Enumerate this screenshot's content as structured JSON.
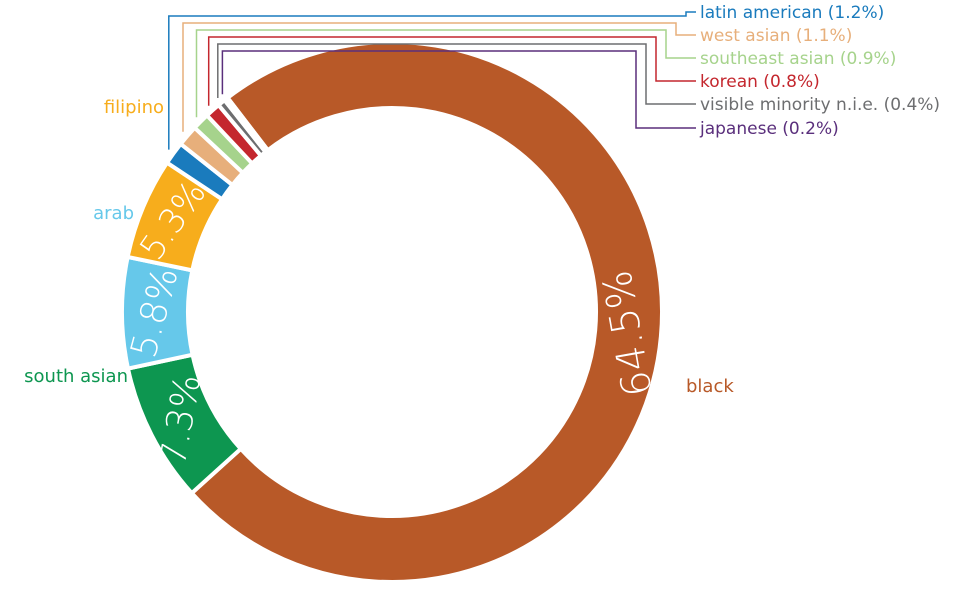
{
  "chart_data": {
    "type": "pie",
    "donut": true,
    "title": "",
    "slices": [
      {
        "name": "black",
        "value": 64.5,
        "value_label": "64.5%",
        "color": "#b85928"
      },
      {
        "name": "south asian",
        "value": 7.3,
        "value_label": "7.3%",
        "color": "#0d9650"
      },
      {
        "name": "arab",
        "value": 5.8,
        "value_label": "5.8%",
        "color": "#66c8ea"
      },
      {
        "name": "filipino",
        "value": 5.3,
        "value_label": "5.3%",
        "color": "#f7ad1c"
      },
      {
        "name": "latin american",
        "value": 1.2,
        "value_label": "1.2%",
        "color": "#1a7bbd",
        "callout": "latin american (1.2%)"
      },
      {
        "name": "west asian",
        "value": 1.1,
        "value_label": "1.1%",
        "color": "#e7af7b",
        "callout": "west asian (1.1%)"
      },
      {
        "name": "southeast asian",
        "value": 0.9,
        "value_label": "0.9%",
        "color": "#a6d38c",
        "callout": "southeast asian (0.9%)"
      },
      {
        "name": "korean",
        "value": 0.8,
        "value_label": "0.8%",
        "color": "#c4272e",
        "callout": "korean (0.8%)"
      },
      {
        "name": "visible minority n.i.e.",
        "value": 0.4,
        "value_label": "0.4%",
        "color": "#6d6e70",
        "callout": "visible minority n.i.e. (0.4%)"
      },
      {
        "name": "japanese",
        "value": 0.2,
        "value_label": "0.2%",
        "color": "#5a2f7c",
        "callout": "japanese (0.2%)"
      }
    ]
  }
}
